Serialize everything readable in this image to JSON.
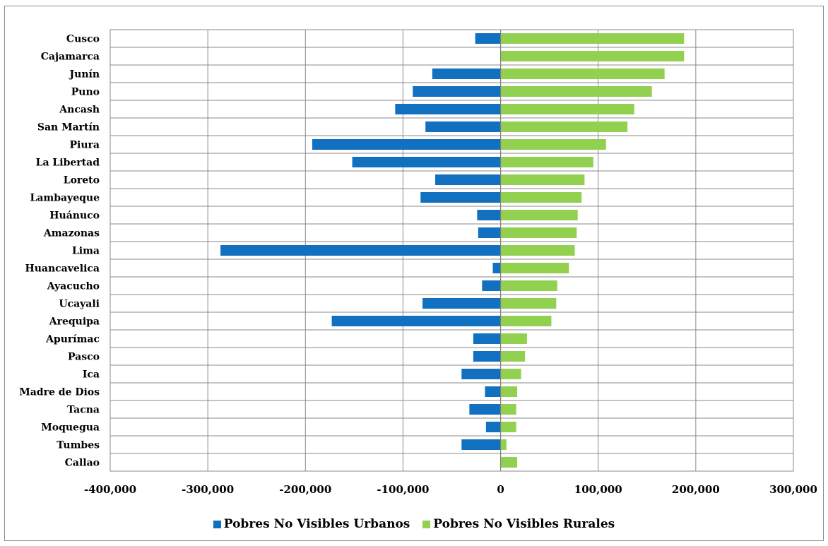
{
  "chart_data": {
    "type": "bar",
    "orientation": "horizontal",
    "categories": [
      "Cusco",
      "Cajamarca",
      "Junín",
      "Puno",
      "Ancash",
      "San Martín",
      "Piura",
      "La Libertad",
      "Loreto",
      "Lambayeque",
      "Huánuco",
      "Amazonas",
      "Lima",
      "Huancavelica",
      "Ayacucho",
      "Ucayali",
      "Arequipa",
      "Apurímac",
      "Pasco",
      "Ica",
      "Madre de Dios",
      "Tacna",
      "Moquegua",
      "Tumbes",
      "Callao"
    ],
    "series": [
      {
        "name": "Pobres No Visibles Urbanos",
        "color": "#1170c0",
        "values": [
          -26000,
          0,
          -70000,
          -90000,
          -108000,
          -77000,
          -193000,
          -152000,
          -67000,
          -82000,
          -24000,
          -23000,
          -287000,
          -8000,
          -19000,
          -80000,
          -173000,
          -28000,
          -28000,
          -40000,
          -16000,
          -32000,
          -15000,
          -40000,
          0
        ]
      },
      {
        "name": "Pobres No Visibles Rurales",
        "color": "#92d050",
        "values": [
          188000,
          188000,
          168000,
          155000,
          137000,
          130000,
          108000,
          95000,
          86000,
          83000,
          79000,
          78000,
          76000,
          70000,
          58000,
          57000,
          52000,
          27000,
          25000,
          21000,
          17000,
          16000,
          16000,
          6000,
          17000
        ]
      }
    ],
    "xlim": [
      -400000,
      300000
    ],
    "xticks": [
      -400000,
      -300000,
      -200000,
      -100000,
      0,
      100000,
      200000,
      300000
    ],
    "xtick_labels": [
      "-400,000",
      "-300,000",
      "-200,000",
      "-100,000",
      "0",
      "100,000",
      "200,000",
      "300,000"
    ],
    "grid": true,
    "legend": "bottom"
  }
}
